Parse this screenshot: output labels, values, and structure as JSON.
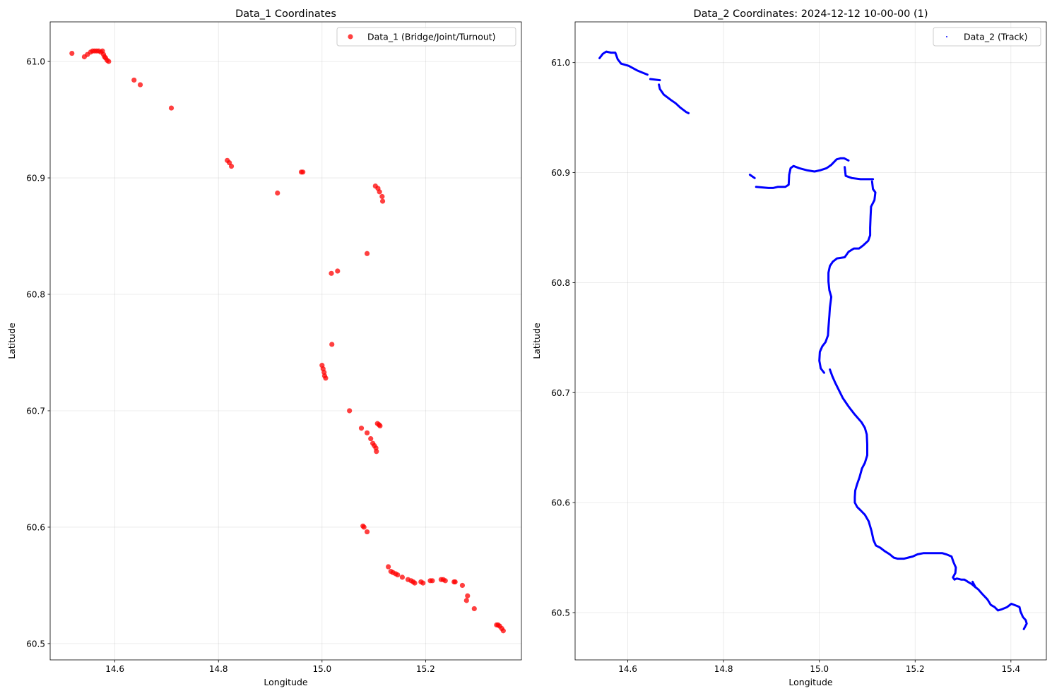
{
  "chart_data": [
    {
      "type": "scatter",
      "title": "Data_1 Coordinates",
      "xlabel": "Longitude",
      "ylabel": "Latitude",
      "xlim": [
        14.475,
        15.385
      ],
      "ylim": [
        60.486,
        61.034
      ],
      "xticks": [
        14.6,
        14.8,
        15.0,
        15.2
      ],
      "yticks": [
        60.5,
        60.6,
        60.7,
        60.8,
        60.9,
        61.0
      ],
      "xtick_labels": [
        "14.6",
        "14.8",
        "15.0",
        "15.2"
      ],
      "ytick_labels": [
        "60.5",
        "60.6",
        "60.7",
        "60.8",
        "60.9",
        "61.0"
      ],
      "grid": true,
      "legend_position": "top-right",
      "series": [
        {
          "name": "Data_1 (Bridge/Joint/Turnout)",
          "color": "#ff0000",
          "marker": "circle",
          "points": [
            [
              14.517,
              61.007
            ],
            [
              14.541,
              61.004
            ],
            [
              14.547,
              61.006
            ],
            [
              14.553,
              61.008
            ],
            [
              14.557,
              61.009
            ],
            [
              14.561,
              61.009
            ],
            [
              14.565,
              61.009
            ],
            [
              14.569,
              61.009
            ],
            [
              14.573,
              61.008
            ],
            [
              14.576,
              61.009
            ],
            [
              14.578,
              61.006
            ],
            [
              14.58,
              61.004
            ],
            [
              14.582,
              61.003
            ],
            [
              14.585,
              61.001
            ],
            [
              14.588,
              61.0
            ],
            [
              14.637,
              60.984
            ],
            [
              14.649,
              60.98
            ],
            [
              14.709,
              60.96
            ],
            [
              14.817,
              60.915
            ],
            [
              14.821,
              60.913
            ],
            [
              14.825,
              60.91
            ],
            [
              14.914,
              60.887
            ],
            [
              14.96,
              60.905
            ],
            [
              14.963,
              60.905
            ],
            [
              15.018,
              60.818
            ],
            [
              15.03,
              60.82
            ],
            [
              15.087,
              60.835
            ],
            [
              15.103,
              60.893
            ],
            [
              15.108,
              60.891
            ],
            [
              15.111,
              60.888
            ],
            [
              15.116,
              60.884
            ],
            [
              15.117,
              60.88
            ],
            [
              15.019,
              60.757
            ],
            [
              15.0,
              60.739
            ],
            [
              15.002,
              60.736
            ],
            [
              15.004,
              60.733
            ],
            [
              15.005,
              60.73
            ],
            [
              15.007,
              60.728
            ],
            [
              15.053,
              60.7
            ],
            [
              15.076,
              60.685
            ],
            [
              15.087,
              60.681
            ],
            [
              15.094,
              60.676
            ],
            [
              15.098,
              60.672
            ],
            [
              15.101,
              60.67
            ],
            [
              15.104,
              60.668
            ],
            [
              15.105,
              60.665
            ],
            [
              15.107,
              60.689
            ],
            [
              15.11,
              60.688
            ],
            [
              15.112,
              60.687
            ],
            [
              15.079,
              60.601
            ],
            [
              15.081,
              60.6
            ],
            [
              15.087,
              60.596
            ],
            [
              15.128,
              60.566
            ],
            [
              15.133,
              60.562
            ],
            [
              15.137,
              60.561
            ],
            [
              15.142,
              60.56
            ],
            [
              15.146,
              60.559
            ],
            [
              15.155,
              60.557
            ],
            [
              15.166,
              60.555
            ],
            [
              15.172,
              60.554
            ],
            [
              15.176,
              60.553
            ],
            [
              15.179,
              60.552
            ],
            [
              15.191,
              60.553
            ],
            [
              15.195,
              60.552
            ],
            [
              15.209,
              60.554
            ],
            [
              15.213,
              60.554
            ],
            [
              15.23,
              60.555
            ],
            [
              15.234,
              60.555
            ],
            [
              15.238,
              60.554
            ],
            [
              15.255,
              60.553
            ],
            [
              15.257,
              60.553
            ],
            [
              15.271,
              60.55
            ],
            [
              15.281,
              60.541
            ],
            [
              15.279,
              60.537
            ],
            [
              15.294,
              60.53
            ],
            [
              15.337,
              60.516
            ],
            [
              15.34,
              60.516
            ],
            [
              15.343,
              60.515
            ],
            [
              15.347,
              60.513
            ],
            [
              15.35,
              60.511
            ]
          ]
        }
      ]
    },
    {
      "type": "line",
      "title": "Data_2 Coordinates: 2024-12-12 10-00-00 (1)",
      "xlabel": "Longitude",
      "ylabel": "Latitude",
      "xlim": [
        14.49,
        15.474
      ],
      "ylim": [
        60.457,
        61.037
      ],
      "xticks": [
        14.6,
        14.8,
        15.0,
        15.2,
        15.4
      ],
      "yticks": [
        60.5,
        60.6,
        60.7,
        60.8,
        60.9,
        61.0
      ],
      "xtick_labels": [
        "14.6",
        "14.8",
        "15.0",
        "15.2",
        "15.4"
      ],
      "ytick_labels": [
        "60.5",
        "60.6",
        "60.7",
        "60.8",
        "60.9",
        "61.0"
      ],
      "grid": true,
      "legend_position": "top-right",
      "series": [
        {
          "name": "Data_2 (Track)",
          "color": "#0000ff",
          "marker": "point",
          "segments": [
            [
              [
                14.541,
                61.004
              ],
              [
                14.548,
                61.008
              ],
              [
                14.555,
                61.01
              ],
              [
                14.565,
                61.009
              ],
              [
                14.574,
                61.009
              ],
              [
                14.579,
                61.003
              ],
              [
                14.586,
                60.999
              ],
              [
                14.602,
                60.997
              ],
              [
                14.619,
                60.993
              ],
              [
                14.63,
                60.991
              ],
              [
                14.641,
                60.989
              ]
            ],
            [
              [
                14.647,
                60.985
              ],
              [
                14.667,
                60.984
              ]
            ],
            [
              [
                14.665,
                60.98
              ],
              [
                14.667,
                60.976
              ],
              [
                14.675,
                60.971
              ],
              [
                14.69,
                60.966
              ],
              [
                14.7,
                60.963
              ],
              [
                14.71,
                60.959
              ],
              [
                14.722,
                60.955
              ],
              [
                14.727,
                60.954
              ]
            ],
            [
              [
                14.855,
                60.898
              ],
              [
                14.865,
                60.895
              ]
            ],
            [
              [
                14.868,
                60.887
              ],
              [
                14.894,
                60.886
              ],
              [
                14.903,
                60.886
              ],
              [
                14.913,
                60.887
              ],
              [
                14.929,
                60.887
              ],
              [
                14.936,
                60.889
              ],
              [
                14.937,
                60.898
              ],
              [
                14.94,
                60.904
              ],
              [
                14.946,
                60.906
              ],
              [
                14.958,
                60.904
              ],
              [
                14.975,
                60.902
              ],
              [
                14.99,
                60.901
              ],
              [
                15.001,
                60.902
              ],
              [
                15.015,
                60.904
              ],
              [
                15.025,
                60.907
              ],
              [
                15.036,
                60.912
              ],
              [
                15.044,
                60.913
              ],
              [
                15.052,
                60.913
              ],
              [
                15.061,
                60.911
              ]
            ],
            [
              [
                15.053,
                60.905
              ],
              [
                15.055,
                60.897
              ],
              [
                15.068,
                60.895
              ],
              [
                15.086,
                60.894
              ],
              [
                15.1,
                60.894
              ],
              [
                15.112,
                60.894
              ]
            ],
            [
              [
                15.11,
                60.892
              ],
              [
                15.112,
                60.885
              ],
              [
                15.117,
                60.882
              ],
              [
                15.115,
                60.875
              ],
              [
                15.108,
                60.869
              ],
              [
                15.107,
                60.86
              ],
              [
                15.106,
                60.85
              ],
              [
                15.106,
                60.843
              ],
              [
                15.102,
                60.838
              ],
              [
                15.092,
                60.834
              ],
              [
                15.083,
                60.831
              ],
              [
                15.072,
                60.831
              ],
              [
                15.061,
                60.828
              ],
              [
                15.053,
                60.823
              ],
              [
                15.037,
                60.822
              ],
              [
                15.028,
                60.819
              ],
              [
                15.022,
                60.815
              ],
              [
                15.019,
                60.809
              ],
              [
                15.019,
                60.801
              ],
              [
                15.021,
                60.793
              ],
              [
                15.025,
                60.787
              ],
              [
                15.022,
                60.777
              ],
              [
                15.021,
                60.77
              ],
              [
                15.019,
                60.759
              ],
              [
                15.018,
                60.752
              ],
              [
                15.013,
                60.746
              ],
              [
                15.006,
                60.742
              ],
              [
                15.001,
                60.737
              ],
              [
                15.0,
                60.729
              ],
              [
                15.003,
                60.722
              ],
              [
                15.01,
                60.718
              ]
            ],
            [
              [
                15.022,
                60.721
              ],
              [
                15.027,
                60.715
              ],
              [
                15.033,
                60.709
              ],
              [
                15.041,
                60.702
              ],
              [
                15.049,
                60.695
              ],
              [
                15.06,
                60.688
              ],
              [
                15.065,
                60.685
              ],
              [
                15.074,
                60.68
              ],
              [
                15.088,
                60.673
              ],
              [
                15.095,
                60.668
              ],
              [
                15.099,
                60.662
              ],
              [
                15.1,
                60.653
              ],
              [
                15.1,
                60.643
              ],
              [
                15.095,
                60.636
              ],
              [
                15.089,
                60.631
              ],
              [
                15.084,
                60.623
              ],
              [
                15.079,
                60.617
              ],
              [
                15.075,
                60.611
              ],
              [
                15.074,
                60.605
              ],
              [
                15.074,
                60.6
              ],
              [
                15.079,
                60.596
              ],
              [
                15.086,
                60.593
              ],
              [
                15.095,
                60.589
              ],
              [
                15.103,
                60.583
              ],
              [
                15.109,
                60.574
              ],
              [
                15.113,
                60.566
              ],
              [
                15.118,
                60.561
              ],
              [
                15.127,
                60.559
              ],
              [
                15.136,
                60.556
              ],
              [
                15.147,
                60.553
              ],
              [
                15.155,
                60.55
              ],
              [
                15.163,
                60.549
              ],
              [
                15.177,
                60.549
              ],
              [
                15.186,
                60.55
              ],
              [
                15.195,
                60.551
              ],
              [
                15.205,
                60.553
              ],
              [
                15.217,
                60.554
              ],
              [
                15.228,
                60.554
              ],
              [
                15.243,
                60.554
              ],
              [
                15.257,
                60.554
              ],
              [
                15.265,
                60.553
              ],
              [
                15.276,
                60.551
              ],
              [
                15.28,
                60.546
              ],
              [
                15.285,
                60.541
              ],
              [
                15.284,
                60.536
              ],
              [
                15.279,
                60.532
              ],
              [
                15.282,
                60.53
              ],
              [
                15.287,
                60.531
              ],
              [
                15.296,
                60.53
              ],
              [
                15.303,
                60.53
              ],
              [
                15.31,
                60.528
              ],
              [
                15.318,
                60.526
              ],
              [
                15.326,
                60.523
              ],
              [
                15.332,
                60.521
              ],
              [
                15.34,
                60.517
              ],
              [
                15.351,
                60.512
              ],
              [
                15.358,
                60.507
              ],
              [
                15.366,
                60.505
              ],
              [
                15.373,
                60.502
              ],
              [
                15.381,
                60.503
              ],
              [
                15.392,
                60.505
              ],
              [
                15.401,
                60.508
              ],
              [
                15.407,
                60.507
              ],
              [
                15.413,
                60.506
              ],
              [
                15.418,
                60.505
              ],
              [
                15.42,
                60.501
              ],
              [
                15.425,
                60.496
              ],
              [
                15.431,
                60.493
              ],
              [
                15.433,
                60.49
              ],
              [
                15.427,
                60.485
              ]
            ],
            [
              [
                15.32,
                60.528
              ],
              [
                15.326,
                60.523
              ]
            ]
          ]
        }
      ]
    }
  ]
}
